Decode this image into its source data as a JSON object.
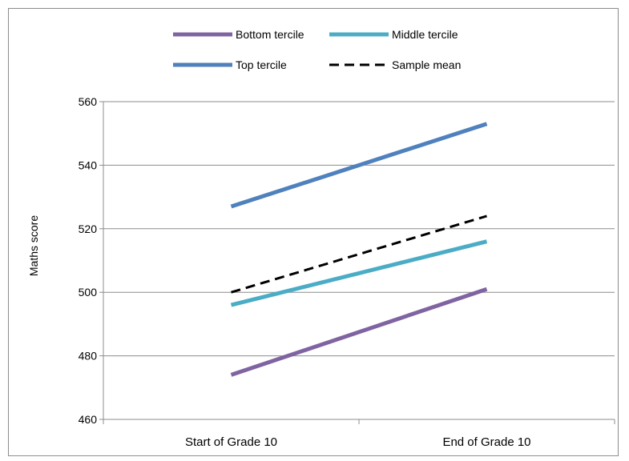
{
  "chart_data": {
    "type": "line",
    "title": "",
    "xlabel": "",
    "ylabel": "Maths score",
    "categories": [
      "Start of Grade 10",
      "End of Grade 10"
    ],
    "ylim": [
      460,
      560
    ],
    "yticks": [
      460,
      480,
      500,
      520,
      540,
      560
    ],
    "grid": "horizontal",
    "legend_position": "top",
    "series": [
      {
        "name": "Bottom tercile",
        "values": [
          474,
          501
        ],
        "color": "#8064a2",
        "style": "solid"
      },
      {
        "name": "Middle tercile",
        "values": [
          496,
          516
        ],
        "color": "#4bacc6",
        "style": "solid"
      },
      {
        "name": "Top tercile",
        "values": [
          527,
          553
        ],
        "color": "#4f81bd",
        "style": "solid"
      },
      {
        "name": "Sample mean",
        "values": [
          500,
          524
        ],
        "color": "#000000",
        "style": "dashed"
      }
    ]
  }
}
